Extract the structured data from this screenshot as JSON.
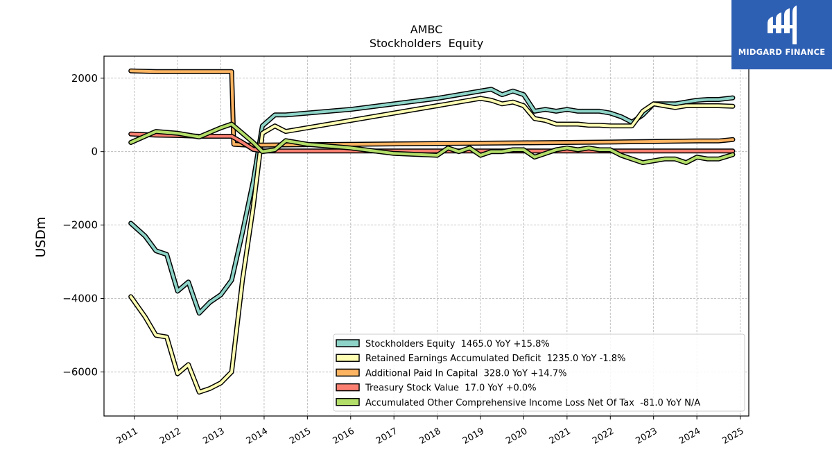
{
  "logo": {
    "name": "MIDGARD FINANCE",
    "color": "#2d5fb3"
  },
  "chart_data": {
    "type": "line",
    "title": "AMBC",
    "subtitle": "Stockholders  Equity",
    "ylabel": "USDm",
    "xlabel": "",
    "xlim": [
      2010.3,
      2025.2
    ],
    "ylim": [
      -7200,
      2600
    ],
    "y_ticks": [
      2000,
      0,
      -2000,
      -4000,
      -6000
    ],
    "x_ticks": [
      2011,
      2012,
      2013,
      2014,
      2015,
      2016,
      2017,
      2018,
      2019,
      2020,
      2021,
      2022,
      2023,
      2024,
      2025
    ],
    "grid": true,
    "legend_position": "lower-right",
    "series": [
      {
        "name": "Stockholders Equity  1465.0 YoY +15.8%",
        "color": "#8dd3c7",
        "x": [
          2010.92,
          2011.25,
          2011.5,
          2011.75,
          2012.0,
          2012.25,
          2012.5,
          2012.75,
          2013.0,
          2013.25,
          2013.5,
          2013.75,
          2013.96,
          2014.25,
          2014.5,
          2016.0,
          2018.0,
          2019.0,
          2019.25,
          2019.5,
          2019.75,
          2020.0,
          2020.25,
          2020.5,
          2020.75,
          2021.0,
          2021.25,
          2021.5,
          2021.75,
          2022.0,
          2022.25,
          2022.5,
          2022.75,
          2023.0,
          2023.25,
          2023.5,
          2023.75,
          2024.0,
          2024.25,
          2024.5,
          2024.83
        ],
        "y": [
          -1950,
          -2300,
          -2700,
          -2800,
          -3800,
          -3550,
          -4400,
          -4100,
          -3900,
          -3500,
          -2200,
          -800,
          700,
          1000,
          1000,
          1150,
          1450,
          1650,
          1700,
          1550,
          1650,
          1550,
          1100,
          1150,
          1100,
          1150,
          1100,
          1100,
          1100,
          1050,
          950,
          800,
          1000,
          1300,
          1300,
          1300,
          1350,
          1400,
          1420,
          1420,
          1465
        ]
      },
      {
        "name": "Retained Earnings Accumulated Deficit  1235.0 YoY -1.8%",
        "color": "#ffffb3",
        "x": [
          2010.92,
          2011.25,
          2011.5,
          2011.75,
          2012.0,
          2012.25,
          2012.5,
          2012.75,
          2013.0,
          2013.25,
          2013.5,
          2013.75,
          2013.96,
          2014.25,
          2014.5,
          2016.0,
          2018.0,
          2019.0,
          2019.25,
          2019.5,
          2019.75,
          2020.0,
          2020.25,
          2020.5,
          2020.75,
          2021.0,
          2021.25,
          2021.5,
          2021.75,
          2022.0,
          2022.25,
          2022.5,
          2022.75,
          2023.0,
          2023.25,
          2023.5,
          2023.75,
          2024.0,
          2024.25,
          2024.5,
          2024.83
        ],
        "y": [
          -3950,
          -4500,
          -5000,
          -5050,
          -6050,
          -5800,
          -6550,
          -6450,
          -6300,
          -6000,
          -3500,
          -1500,
          500,
          700,
          550,
          850,
          1250,
          1450,
          1400,
          1300,
          1350,
          1250,
          900,
          850,
          750,
          750,
          750,
          720,
          720,
          700,
          700,
          700,
          1100,
          1300,
          1250,
          1200,
          1250,
          1250,
          1250,
          1250,
          1235
        ]
      },
      {
        "name": "Additional Paid In Capital  328.0 YoY +14.7%",
        "color": "#fdb462",
        "x": [
          2010.92,
          2011.5,
          2012.0,
          2012.5,
          2013.0,
          2013.25,
          2013.3,
          2013.6,
          2014.0,
          2016.0,
          2018.0,
          2020.0,
          2022.0,
          2024.0,
          2024.5,
          2024.83
        ],
        "y": [
          2200,
          2180,
          2180,
          2180,
          2180,
          2180,
          200,
          180,
          180,
          200,
          220,
          240,
          260,
          290,
          290,
          328
        ]
      },
      {
        "name": "Treasury Stock Value  17.0 YoY +0.0%",
        "color": "#fb8072",
        "x": [
          2010.92,
          2011.5,
          2012.0,
          2012.5,
          2013.0,
          2013.25,
          2013.5,
          2013.75,
          2014.0,
          2016.0,
          2018.0,
          2020.0,
          2022.0,
          2024.0,
          2024.83
        ],
        "y": [
          480,
          450,
          440,
          420,
          420,
          420,
          250,
          60,
          17,
          17,
          17,
          17,
          17,
          17,
          17
        ]
      },
      {
        "name": "Accumulated Other Comprehensive Income Loss Net Of Tax  -81.0 YoY N/A",
        "color": "#b3de69",
        "x": [
          2010.92,
          2011.5,
          2012.0,
          2012.5,
          2013.0,
          2013.25,
          2013.5,
          2013.75,
          2013.96,
          2014.25,
          2014.5,
          2015.0,
          2016.0,
          2017.0,
          2018.0,
          2018.25,
          2018.5,
          2018.75,
          2019.0,
          2019.25,
          2019.5,
          2019.75,
          2020.0,
          2020.25,
          2020.5,
          2020.75,
          2021.0,
          2021.25,
          2021.5,
          2021.75,
          2022.0,
          2022.25,
          2022.5,
          2022.75,
          2023.0,
          2023.25,
          2023.5,
          2023.75,
          2024.0,
          2024.25,
          2024.5,
          2024.83
        ],
        "y": [
          250,
          550,
          500,
          400,
          650,
          750,
          500,
          250,
          0,
          50,
          300,
          200,
          100,
          -50,
          -100,
          100,
          0,
          100,
          -100,
          0,
          0,
          50,
          50,
          -150,
          -50,
          50,
          100,
          50,
          100,
          50,
          50,
          -100,
          -200,
          -300,
          -250,
          -200,
          -200,
          -300,
          -150,
          -200,
          -200,
          -81
        ]
      }
    ]
  }
}
